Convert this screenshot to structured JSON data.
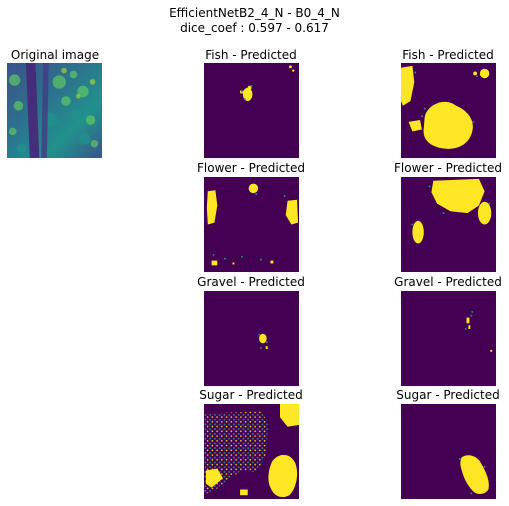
{
  "figure": {
    "title_line1": "EfficientNetB2_4_N - B0_4_N",
    "title_line2": "dice_coef : 0.597 - 0.617"
  },
  "chart_data": [
    {
      "type": "heatmap",
      "title": "Original image",
      "content": "satellite cloud image (grayscale rendered with viridis colormap)"
    },
    {
      "type": "heatmap",
      "title": "Fish - Predicted",
      "model": "EfficientNetB2_4_N",
      "mask": "binary"
    },
    {
      "type": "heatmap",
      "title": "Fish - Predicted",
      "model": "B0_4_N",
      "mask": "binary"
    },
    {
      "type": "heatmap",
      "title": "Flower - Predicted",
      "model": "EfficientNetB2_4_N",
      "mask": "binary"
    },
    {
      "type": "heatmap",
      "title": "Flower - Predicted",
      "model": "B0_4_N",
      "mask": "binary"
    },
    {
      "type": "heatmap",
      "title": "Gravel - Predicted",
      "model": "EfficientNetB2_4_N",
      "mask": "binary"
    },
    {
      "type": "heatmap",
      "title": "Gravel - Predicted",
      "model": "B0_4_N",
      "mask": "binary"
    },
    {
      "type": "heatmap",
      "title": "Sugar - Predicted",
      "model": "EfficientNetB2_4_N",
      "mask": "binary"
    },
    {
      "type": "heatmap",
      "title": "Sugar - Predicted",
      "model": "B0_4_N",
      "mask": "binary"
    }
  ],
  "colors": {
    "background": "#440154",
    "foreground": "#fde725",
    "mid": "#21918c",
    "dark_teal": "#3b528b"
  }
}
